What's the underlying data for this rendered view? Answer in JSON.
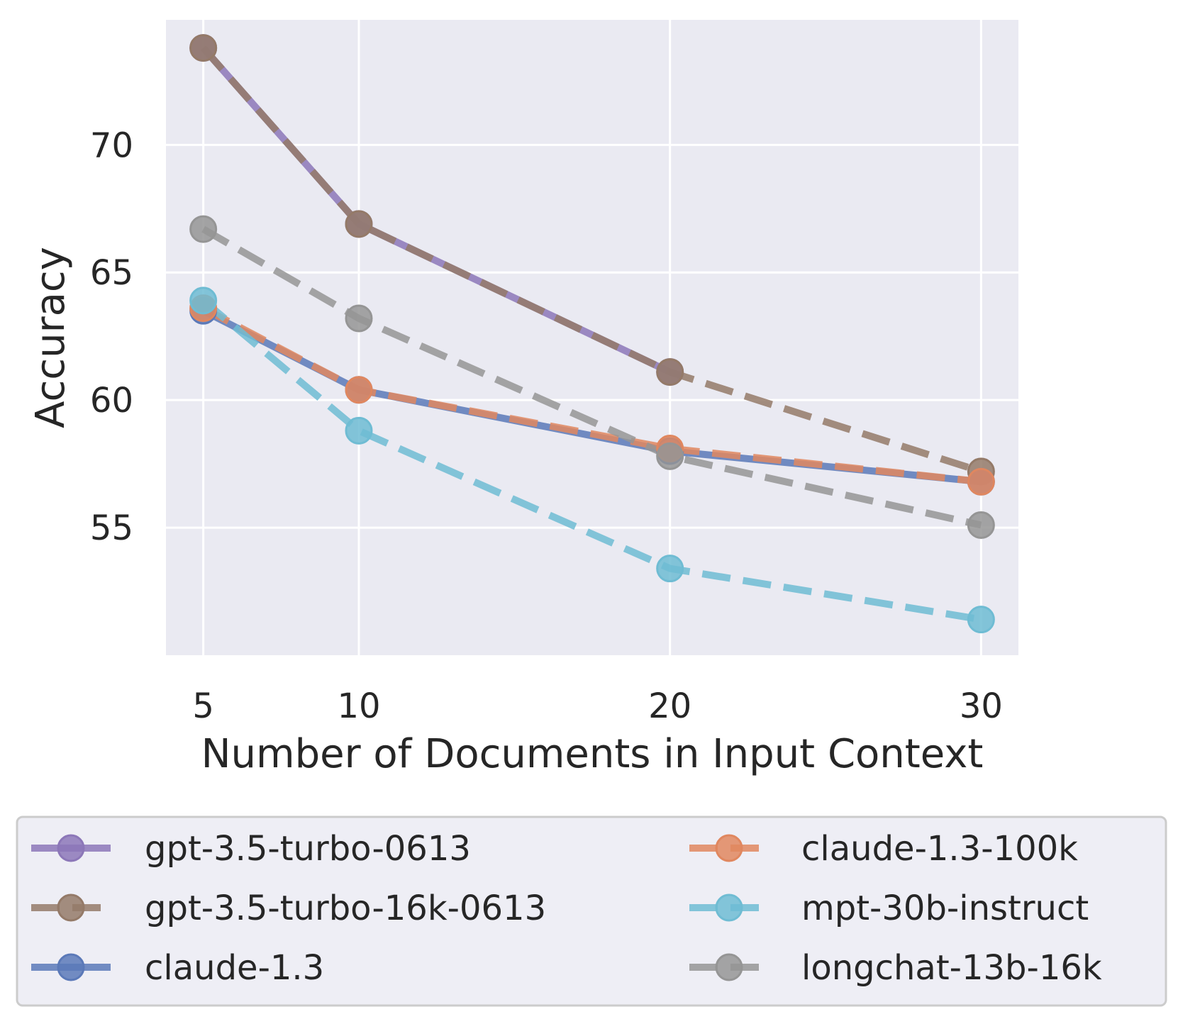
{
  "chart_data": {
    "type": "line",
    "xlabel": "Number of Documents in Input Context",
    "ylabel": "Accuracy",
    "x": [
      5,
      10,
      20,
      30
    ],
    "x_ticks": [
      5,
      10,
      20,
      30
    ],
    "y_ticks": [
      55,
      60,
      65,
      70
    ],
    "xlim": [
      3.8,
      31.2
    ],
    "ylim": [
      50.0,
      74.9
    ],
    "grid": true,
    "legend_placement": "below plot, two columns",
    "series": [
      {
        "name": "gpt-3.5-turbo-0613",
        "values": [
          73.8,
          66.9,
          61.1,
          null
        ],
        "color": "#8c77b8",
        "dash": "solid"
      },
      {
        "name": "gpt-3.5-turbo-16k-0613",
        "values": [
          73.8,
          66.9,
          61.1,
          57.2
        ],
        "color": "#947a68",
        "dash": "dashed"
      },
      {
        "name": "claude-1.3",
        "values": [
          63.5,
          60.4,
          58.0,
          56.8
        ],
        "color": "#5b79b8",
        "dash": "solid"
      },
      {
        "name": "claude-1.3-100k",
        "values": [
          63.6,
          60.4,
          58.1,
          56.8
        ],
        "color": "#e0875f",
        "dash": "dashed"
      },
      {
        "name": "mpt-30b-instruct",
        "values": [
          63.9,
          58.8,
          53.4,
          51.4
        ],
        "color": "#6fbcd3",
        "dash": "dashed"
      },
      {
        "name": "longchat-13b-16k",
        "values": [
          66.7,
          63.2,
          57.8,
          55.1
        ],
        "color": "#959595",
        "dash": "dashed"
      }
    ]
  }
}
